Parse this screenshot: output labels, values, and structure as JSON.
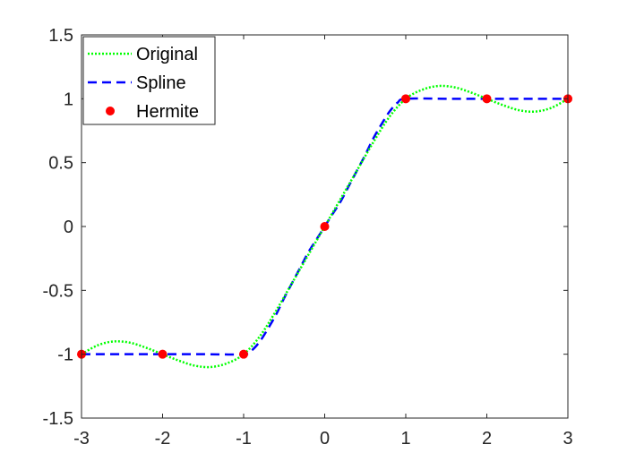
{
  "chart_data": {
    "type": "line",
    "xlim": [
      -3,
      3
    ],
    "ylim": [
      -1.5,
      1.5
    ],
    "xticks": [
      -3,
      -2,
      -1,
      0,
      1,
      2,
      3
    ],
    "yticks": [
      -1.5,
      -1,
      -0.5,
      0,
      0.5,
      1,
      1.5
    ],
    "xtick_labels": [
      "-3",
      "-2",
      "-1",
      "0",
      "1",
      "2",
      "3"
    ],
    "ytick_labels": [
      "-1.5",
      "-1",
      "-0.5",
      "0",
      "0.5",
      "1",
      "1.5"
    ],
    "grid": false,
    "legend_position": "top-left",
    "series": [
      {
        "name": "Original",
        "style": "dotted",
        "color": "#00ff00",
        "x": [
          -3,
          -2.8,
          -2.6,
          -2.4,
          -2.2,
          -2,
          -1.8,
          -1.6,
          -1.4,
          -1.2,
          -1,
          -0.8,
          -0.6,
          -0.4,
          -0.2,
          0,
          0.2,
          0.4,
          0.6,
          0.8,
          1,
          1.2,
          1.4,
          1.6,
          1.8,
          2,
          2.2,
          2.4,
          2.6,
          2.8,
          3
        ],
        "y": [
          -1,
          -0.93,
          -0.9,
          -0.91,
          -0.95,
          -1,
          -1.05,
          -1.09,
          -1.1,
          -1.07,
          -1,
          -0.86,
          -0.66,
          -0.44,
          -0.22,
          0,
          0.22,
          0.44,
          0.66,
          0.86,
          1,
          1.07,
          1.1,
          1.09,
          1.05,
          1,
          0.95,
          0.91,
          0.9,
          0.93,
          1
        ]
      },
      {
        "name": "Spline",
        "style": "dashed",
        "color": "#0000ff",
        "x": [
          -3,
          -2.5,
          -2,
          -1.5,
          -1,
          -0.9,
          -0.8,
          -0.7,
          -0.6,
          -0.5,
          -0.4,
          -0.3,
          -0.2,
          -0.1,
          0,
          0.1,
          0.2,
          0.3,
          0.4,
          0.5,
          0.6,
          0.7,
          0.8,
          0.9,
          1,
          1.5,
          2,
          2.5,
          3
        ],
        "y": [
          -1,
          -1,
          -1,
          -1,
          -1,
          -0.97,
          -0.9,
          -0.8,
          -0.69,
          -0.56,
          -0.44,
          -0.32,
          -0.2,
          -0.1,
          0,
          0.1,
          0.2,
          0.32,
          0.44,
          0.56,
          0.69,
          0.8,
          0.9,
          0.97,
          1,
          1,
          1,
          1,
          1
        ]
      },
      {
        "name": "Hermite",
        "style": "markers",
        "color": "#ff0000",
        "x": [
          -3,
          -2,
          -1,
          0,
          1,
          2,
          3
        ],
        "y": [
          -1,
          -1,
          -1,
          0,
          1,
          1,
          1
        ]
      }
    ]
  }
}
